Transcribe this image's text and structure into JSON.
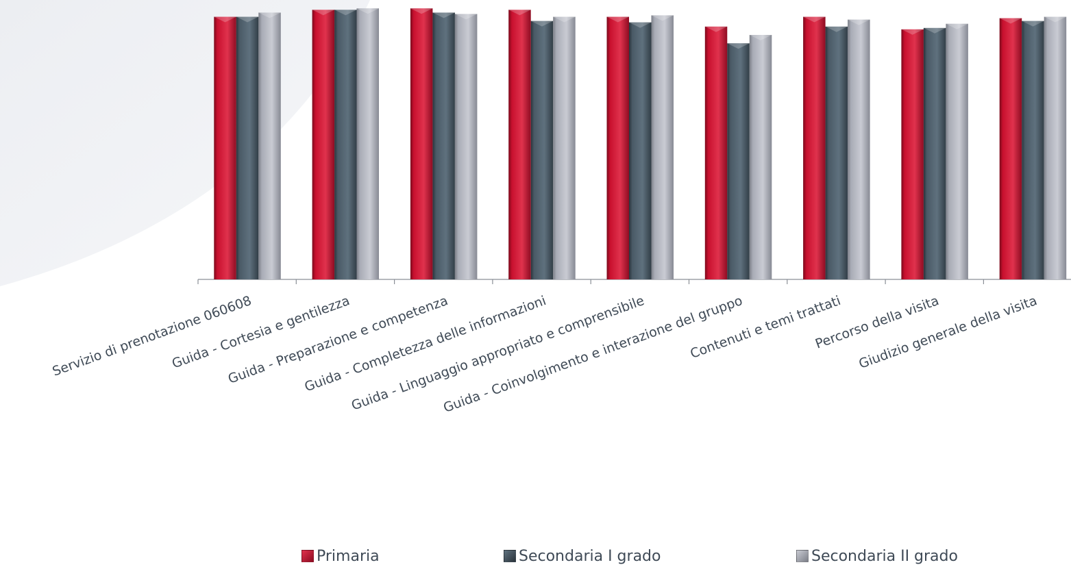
{
  "chart_data": {
    "type": "bar",
    "categories": [
      "Servizio di prenotazione 060608",
      "Guida - Cortesia e gentilezza",
      "Guida - Preparazione e competenza",
      "Guida - Completezza delle informazioni",
      "Guida - Linguaggio appropriato e comprensibile",
      "Guida - Coinvolgimento e interazione del gruppo",
      "Contenuti e temi trattati",
      "Percorso della visita",
      "Giudizio generale della visita"
    ],
    "series": [
      {
        "name": "Primaria",
        "color": "#c8102e",
        "values": [
          0.94,
          0.965,
          0.97,
          0.965,
          0.94,
          0.905,
          0.94,
          0.895,
          0.935
        ]
      },
      {
        "name": "Secondaria I grado",
        "color": "#4a5a66",
        "values": [
          0.94,
          0.965,
          0.955,
          0.925,
          0.92,
          0.845,
          0.905,
          0.9,
          0.925
        ]
      },
      {
        "name": "Secondaria II grado",
        "color": "#a9acb6",
        "values": [
          0.955,
          0.97,
          0.95,
          0.94,
          0.945,
          0.875,
          0.93,
          0.915,
          0.94
        ]
      }
    ],
    "ylim": [
      0,
      1
    ],
    "grid": false,
    "legend_position": "bottom",
    "title": "",
    "xlabel": "",
    "ylabel": ""
  }
}
